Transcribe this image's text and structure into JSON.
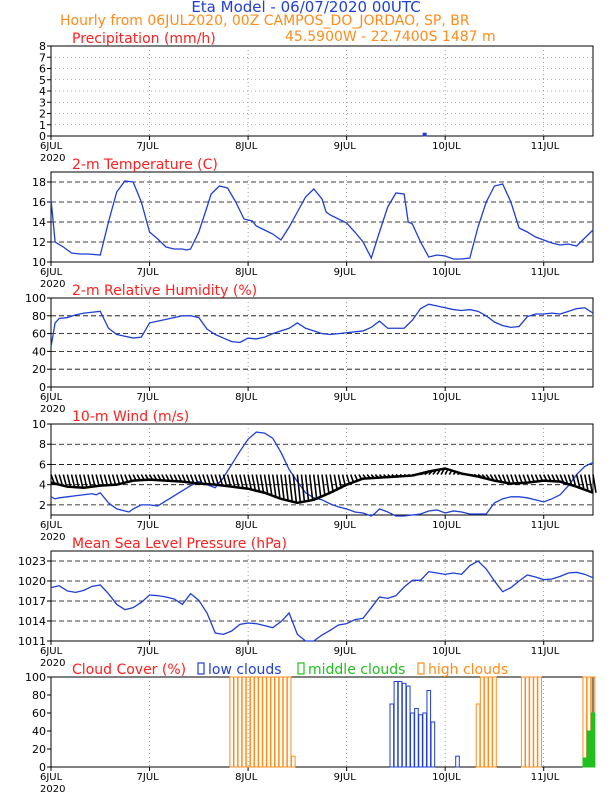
{
  "header": {
    "title": "Eta Model - 06/07/2020 00UTC",
    "subtitle": "Hourly from 06JUL2020, 00Z  CAMPOS_DO_JORDAO, SP, BR",
    "coords": "45.5900W - 22.7400S   1487  m"
  },
  "colors": {
    "title": "#1f3fd6",
    "orange": "#ff8c1a",
    "red": "#ff2020",
    "blue": "#1f3fd6",
    "green": "#20c020",
    "black": "#000000",
    "grid": "#666666"
  },
  "x_axis": {
    "ticks": [
      0,
      24,
      48,
      72,
      96,
      120
    ],
    "tick_labels": [
      "6JUL",
      "7JUL",
      "8JUL",
      "9JUL",
      "10JUL",
      "11JUL"
    ],
    "year_label": "2020",
    "range": [
      0,
      132
    ]
  },
  "chart_data": [
    {
      "id": "precip",
      "type": "bar",
      "title": "Precipitation (mm/h)",
      "xlabel": "Hourly from 06JUL2020, 00Z",
      "ylabel": "mm/h",
      "ylim": [
        0,
        8
      ],
      "yticks": [
        0,
        1,
        2,
        3,
        4,
        5,
        6,
        7,
        8
      ],
      "hlines": [
        0
      ],
      "series": [
        {
          "name": "precipitation",
          "color": "#1f3fd6",
          "x": [
            91
          ],
          "values": [
            0.25
          ]
        }
      ]
    },
    {
      "id": "temp",
      "type": "line",
      "title": "2-m Temperature (C)",
      "ylabel": "C",
      "ylim": [
        10,
        19
      ],
      "yticks": [
        10,
        12,
        14,
        16,
        18
      ],
      "hlines": [
        12,
        14,
        16,
        18
      ],
      "series": [
        {
          "name": "temperature",
          "color": "#1f3fd6",
          "x": [
            0,
            1,
            3,
            5,
            7,
            9,
            12,
            14,
            16,
            18,
            20,
            21,
            22,
            24,
            26,
            28,
            30,
            32,
            33,
            34,
            36,
            38,
            39,
            41,
            43,
            45,
            47,
            49,
            50,
            52,
            54,
            56,
            58,
            60,
            62,
            64,
            66,
            67,
            68,
            70,
            72,
            74,
            76,
            78,
            80,
            82,
            84,
            86,
            87,
            88,
            90,
            92,
            94,
            96,
            98,
            100,
            102,
            104,
            106,
            108,
            110,
            112,
            114,
            116,
            118,
            120,
            122,
            124,
            126,
            128,
            130,
            132
          ],
          "values": [
            16.3,
            12.0,
            11.5,
            10.9,
            10.8,
            10.8,
            10.7,
            14.0,
            17.0,
            18.1,
            18.0,
            17.0,
            16.0,
            13.0,
            12.3,
            11.5,
            11.3,
            11.3,
            11.2,
            11.3,
            13.0,
            15.5,
            16.8,
            17.6,
            17.4,
            16.0,
            14.3,
            14.1,
            13.6,
            13.2,
            12.8,
            12.2,
            13.5,
            15.0,
            16.5,
            17.3,
            16.3,
            15.0,
            14.7,
            14.3,
            13.9,
            13.0,
            12.0,
            10.4,
            13.0,
            15.5,
            16.9,
            16.8,
            14.0,
            13.8,
            12.0,
            10.5,
            10.7,
            10.6,
            10.3,
            10.3,
            10.4,
            13.5,
            16.0,
            17.6,
            17.8,
            16.0,
            13.4,
            13.0,
            12.5,
            12.2,
            11.9,
            11.7,
            11.8,
            11.6,
            12.4,
            13.2
          ]
        }
      ]
    },
    {
      "id": "rh",
      "type": "line",
      "title": "2-m Relative Humidity (%)",
      "ylabel": "%",
      "ylim": [
        0,
        100
      ],
      "yticks": [
        0,
        20,
        40,
        60,
        80,
        100
      ],
      "hlines": [
        0,
        20,
        40,
        60,
        80,
        100
      ],
      "series": [
        {
          "name": "relative humidity",
          "color": "#1f3fd6",
          "x": [
            0,
            1,
            2,
            4,
            6,
            8,
            10,
            12,
            14,
            16,
            18,
            20,
            22,
            24,
            26,
            28,
            30,
            32,
            34,
            36,
            38,
            40,
            42,
            44,
            46,
            48,
            50,
            52,
            54,
            56,
            58,
            60,
            62,
            64,
            66,
            68,
            70,
            72,
            74,
            76,
            78,
            80,
            82,
            84,
            86,
            88,
            90,
            92,
            94,
            96,
            98,
            100,
            102,
            104,
            106,
            108,
            110,
            112,
            114,
            116,
            118,
            120,
            122,
            124,
            126,
            128,
            130,
            132
          ],
          "values": [
            45,
            72,
            77,
            78,
            81,
            83,
            84,
            85,
            66,
            59,
            57,
            55,
            56,
            72,
            74,
            76,
            78,
            80,
            80,
            78,
            65,
            59,
            55,
            51,
            50,
            55,
            54,
            56,
            60,
            63,
            66,
            72,
            66,
            63,
            60,
            59,
            60,
            61,
            62,
            63,
            67,
            74,
            66,
            66,
            66,
            75,
            88,
            93,
            91,
            89,
            87,
            86,
            87,
            85,
            80,
            73,
            69,
            67,
            68,
            79,
            82,
            82,
            83,
            82,
            85,
            88,
            89,
            83
          ]
        }
      ]
    },
    {
      "id": "wind",
      "type": "line",
      "title": "10-m Wind (m/s)",
      "ylabel": "m/s",
      "ylim": [
        1,
        10
      ],
      "yticks": [
        2,
        4,
        6,
        8,
        10
      ],
      "hlines": [
        2,
        4,
        6,
        8,
        10
      ],
      "baseline": 5,
      "series": [
        {
          "name": "wind speed",
          "color": "#1f3fd6",
          "x": [
            0,
            1,
            2,
            4,
            6,
            8,
            10,
            11,
            12,
            14,
            16,
            18,
            19,
            20,
            22,
            24,
            26,
            28,
            30,
            32,
            34,
            36,
            38,
            40,
            42,
            44,
            46,
            48,
            50,
            52,
            54,
            56,
            58,
            60,
            62,
            64,
            66,
            68,
            70,
            72,
            74,
            76,
            78,
            79,
            80,
            82,
            84,
            86,
            88,
            90,
            92,
            94,
            96,
            98,
            100,
            102,
            104,
            106,
            108,
            110,
            112,
            114,
            116,
            118,
            120,
            122,
            124,
            126,
            128,
            130,
            132
          ],
          "values": [
            2.8,
            2.6,
            2.7,
            2.8,
            2.9,
            3.0,
            3.1,
            3.0,
            3.2,
            2.2,
            1.6,
            1.4,
            1.3,
            1.6,
            2.0,
            2.0,
            1.9,
            2.4,
            2.9,
            3.4,
            3.9,
            4.3,
            4.0,
            3.7,
            4.7,
            6.0,
            7.3,
            8.5,
            9.2,
            9.1,
            8.6,
            7.2,
            5.5,
            4.3,
            3.2,
            2.7,
            2.5,
            2.1,
            1.8,
            1.6,
            1.3,
            1.2,
            0.9,
            1.2,
            1.6,
            1.3,
            0.9,
            0.9,
            1.0,
            1.1,
            1.4,
            1.5,
            1.2,
            1.4,
            1.3,
            1.1,
            1.1,
            1.1,
            2.2,
            2.6,
            2.8,
            2.8,
            2.7,
            2.5,
            2.3,
            2.6,
            3.0,
            3.9,
            5.0,
            5.8,
            6.2
          ]
        },
        {
          "name": "wind vector tips",
          "color": "#000000",
          "x": [
            0,
            4,
            8,
            12,
            16,
            20,
            24,
            28,
            32,
            36,
            40,
            44,
            48,
            52,
            56,
            60,
            64,
            68,
            72,
            76,
            80,
            84,
            88,
            92,
            96,
            100,
            104,
            108,
            112,
            116,
            120,
            124,
            128,
            132
          ],
          "values": [
            4.2,
            3.8,
            3.7,
            3.9,
            4.0,
            4.4,
            4.5,
            4.4,
            4.3,
            4.1,
            4.0,
            3.8,
            3.6,
            3.2,
            2.6,
            2.2,
            2.5,
            3.2,
            4.0,
            4.6,
            4.7,
            4.8,
            4.9,
            5.3,
            5.6,
            5.1,
            4.8,
            4.4,
            4.1,
            4.2,
            4.4,
            4.3,
            3.8,
            3.2
          ]
        }
      ]
    },
    {
      "id": "mslp",
      "type": "line",
      "title": "Mean Sea Level Pressure (hPa)",
      "ylabel": "hPa",
      "ylim": [
        1011,
        1024.5
      ],
      "yticks": [
        1011,
        1014,
        1017,
        1020,
        1023
      ],
      "hlines": [
        1011,
        1014,
        1017,
        1020,
        1023
      ],
      "series": [
        {
          "name": "pressure",
          "color": "#1f3fd6",
          "x": [
            0,
            2,
            4,
            6,
            8,
            10,
            12,
            14,
            16,
            18,
            20,
            22,
            24,
            26,
            28,
            30,
            32,
            34,
            36,
            38,
            40,
            42,
            44,
            46,
            48,
            50,
            52,
            54,
            56,
            58,
            60,
            62,
            64,
            66,
            68,
            70,
            72,
            74,
            76,
            78,
            80,
            82,
            84,
            86,
            88,
            90,
            92,
            94,
            96,
            98,
            100,
            102,
            104,
            106,
            108,
            110,
            112,
            114,
            116,
            118,
            120,
            122,
            124,
            126,
            128,
            130,
            132
          ],
          "values": [
            1019.0,
            1019.3,
            1018.5,
            1018.3,
            1018.6,
            1019.2,
            1019.4,
            1018.1,
            1016.5,
            1015.7,
            1016.0,
            1016.8,
            1017.9,
            1017.8,
            1017.6,
            1017.3,
            1016.5,
            1018.1,
            1017.1,
            1015.2,
            1012.2,
            1012.0,
            1012.5,
            1013.5,
            1013.7,
            1013.6,
            1013.3,
            1013.0,
            1013.9,
            1015.2,
            1012.0,
            1011.0,
            1011.0,
            1011.9,
            1012.6,
            1013.4,
            1013.6,
            1014.2,
            1014.4,
            1016.0,
            1017.6,
            1017.4,
            1017.8,
            1019.1,
            1020.1,
            1020.1,
            1021.4,
            1021.2,
            1021.0,
            1021.2,
            1021.0,
            1022.3,
            1023.0,
            1021.8,
            1020.0,
            1018.4,
            1019.0,
            1020.0,
            1020.9,
            1020.6,
            1020.2,
            1020.3,
            1020.7,
            1021.2,
            1021.3,
            1021.0,
            1020.5
          ]
        }
      ]
    },
    {
      "id": "clouds",
      "type": "bar",
      "title": "Cloud Cover (%)",
      "ylabel": "%",
      "ylim": [
        0,
        100
      ],
      "yticks": [
        0,
        20,
        40,
        60,
        80,
        100
      ],
      "hlines": [
        0
      ],
      "legend": [
        "low clouds",
        "middle clouds",
        "high clouds"
      ],
      "series": [
        {
          "name": "high clouds",
          "color": "#ff8c1a",
          "x": [
            44,
            45,
            46,
            47,
            48,
            49,
            50,
            51,
            52,
            53,
            54,
            55,
            56,
            57,
            58,
            59,
            104,
            105,
            106,
            107,
            108,
            115,
            116,
            117,
            118,
            119,
            130,
            131,
            132
          ],
          "values": [
            100,
            100,
            100,
            100,
            100,
            100,
            100,
            100,
            100,
            100,
            100,
            100,
            100,
            100,
            100,
            12,
            70,
            100,
            100,
            100,
            100,
            100,
            100,
            100,
            100,
            100,
            100,
            100,
            100
          ]
        },
        {
          "name": "low clouds",
          "color": "#1f3fd6",
          "x": [
            83,
            84,
            85,
            86,
            87,
            88,
            89,
            90,
            91,
            92,
            93,
            99
          ],
          "values": [
            70,
            95,
            95,
            93,
            90,
            60,
            65,
            58,
            60,
            85,
            50,
            12
          ]
        },
        {
          "name": "middle clouds",
          "color": "#20c020",
          "x": [
            130,
            131,
            132
          ],
          "values": [
            10,
            40,
            60
          ]
        }
      ]
    }
  ]
}
